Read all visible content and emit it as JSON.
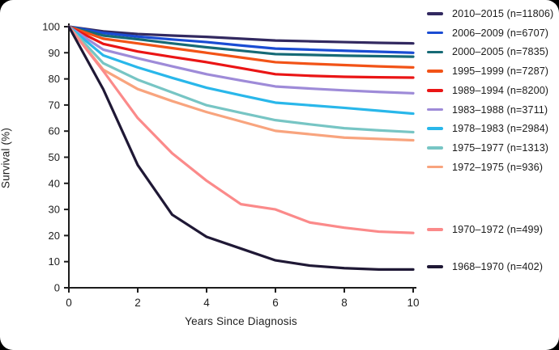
{
  "chart_data": {
    "type": "line",
    "title": "",
    "xlabel": "Years Since Diagnosis",
    "ylabel": "Survival (%)",
    "xlim": [
      0,
      10
    ],
    "ylim": [
      0,
      100
    ],
    "x_ticks": [
      0,
      2,
      4,
      6,
      8,
      10
    ],
    "y_ticks": [
      0,
      10,
      20,
      30,
      40,
      50,
      60,
      70,
      80,
      90,
      100
    ],
    "grid": false,
    "legend_position": "right",
    "axis_color": "#1c1c1c",
    "x": [
      0,
      1,
      2,
      3,
      4,
      5,
      6,
      7,
      8,
      9,
      10
    ],
    "series": [
      {
        "label": "2010–2015 (n=11806)",
        "color": "#322960",
        "values": [
          100,
          98.2,
          97.2,
          96.6,
          96.1,
          95.4,
          94.7,
          94.4,
          94.1,
          93.8,
          93.6
        ]
      },
      {
        "label": "2006–2009 (n=6707)",
        "color": "#1a4cd3",
        "values": [
          100,
          97.6,
          96.2,
          95.1,
          94.1,
          92.8,
          91.6,
          91.2,
          90.8,
          90.4,
          90.0
        ]
      },
      {
        "label": "2000–2005 (n=7835)",
        "color": "#166a76",
        "values": [
          100,
          96.6,
          95.2,
          93.6,
          92.1,
          90.8,
          89.5,
          89.2,
          88.9,
          88.7,
          88.5
        ]
      },
      {
        "label": "1995–1999 (n=7287)",
        "color": "#f25317",
        "values": [
          100,
          95.4,
          93.6,
          91.8,
          90.0,
          88.2,
          86.4,
          85.8,
          85.3,
          84.8,
          84.4
        ]
      },
      {
        "label": "1989–1994 (n=8200)",
        "color": "#ea1515",
        "values": [
          100,
          93.4,
          90.5,
          88.4,
          86.4,
          84.1,
          81.8,
          81.2,
          80.8,
          80.6,
          80.5
        ]
      },
      {
        "label": "1983–1988 (n=3711)",
        "color": "#9e8bd8",
        "values": [
          100,
          91.2,
          87.9,
          84.8,
          81.8,
          79.4,
          77.1,
          76.3,
          75.6,
          75.0,
          74.5
        ]
      },
      {
        "label": "1978–1983 (n=2984)",
        "color": "#29b7ea",
        "values": [
          100,
          89.0,
          84.4,
          80.4,
          76.6,
          73.7,
          70.9,
          69.9,
          68.9,
          67.8,
          66.7
        ]
      },
      {
        "label": "1975–1977 (n=1313)",
        "color": "#77c5c4",
        "values": [
          100,
          86.0,
          79.7,
          74.8,
          69.9,
          67.0,
          64.2,
          62.6,
          61.1,
          60.3,
          59.6
        ]
      },
      {
        "label": "1972–1975 (n=936)",
        "color": "#f8a47e",
        "values": [
          100,
          83.5,
          76.1,
          71.5,
          67.3,
          63.7,
          60.1,
          58.8,
          57.5,
          57.0,
          56.5
        ]
      },
      {
        "label": "1970–1972 (n=499)",
        "color": "#fb8a8a",
        "values": [
          100,
          83.0,
          65.0,
          51.5,
          41.0,
          32.0,
          30.0,
          25.0,
          23.0,
          21.5,
          21.0
        ]
      },
      {
        "label": "1968–1970 (n=402)",
        "color": "#1f1835",
        "values": [
          100,
          76.0,
          47.0,
          28.0,
          19.5,
          15.0,
          10.5,
          8.5,
          7.5,
          7.0,
          7.0
        ]
      }
    ]
  }
}
